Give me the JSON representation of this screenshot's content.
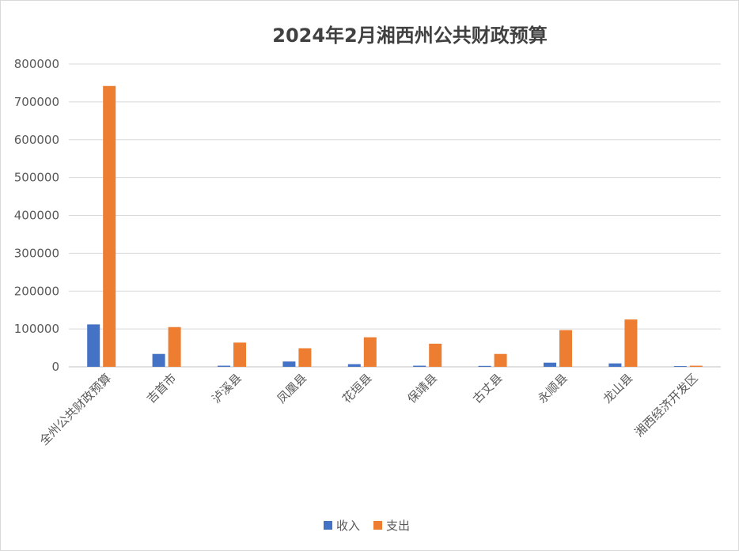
{
  "chart_data": {
    "type": "bar",
    "title": "2024年2月湘西州公共财政预算",
    "xlabel": "",
    "ylabel": "",
    "ylim": [
      0,
      800000
    ],
    "yticks": [
      0,
      100000,
      200000,
      300000,
      400000,
      500000,
      600000,
      700000,
      800000
    ],
    "grid": true,
    "legend_position": "bottom",
    "categories": [
      "全州公共财政预算",
      "吉首市",
      "泸溪县",
      "凤凰县",
      "花垣县",
      "保靖县",
      "古丈县",
      "永顺县",
      "龙山县",
      "湘西经济开发区"
    ],
    "series": [
      {
        "name": "收入",
        "color": "#4472c4",
        "values": [
          112000,
          34000,
          3000,
          14000,
          7000,
          3000,
          2500,
          11000,
          9000,
          2000
        ]
      },
      {
        "name": "支出",
        "color": "#ed7d31",
        "values": [
          742000,
          105000,
          64000,
          49000,
          78000,
          61000,
          34000,
          97000,
          125000,
          3000
        ]
      }
    ]
  }
}
